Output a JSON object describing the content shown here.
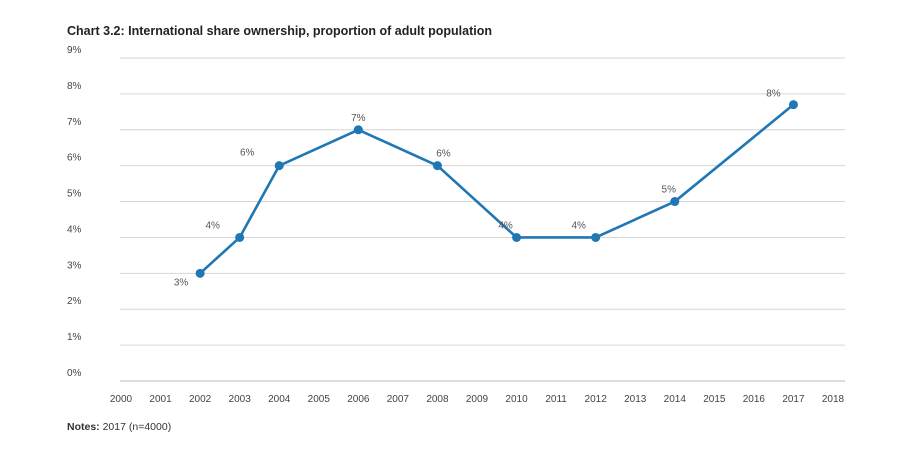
{
  "title": "Chart 3.2: International share ownership, proportion of adult population",
  "notes": {
    "label": "Notes:",
    "text": "2017 (n=4000)"
  },
  "chart_data": {
    "type": "line",
    "title": "Chart 3.2: International share ownership, proportion of adult population",
    "xlabel": "",
    "ylabel": "",
    "ylim": [
      0,
      9
    ],
    "xlim": [
      2000,
      2018
    ],
    "grid": true,
    "y_ticks": [
      "0%",
      "1%",
      "2%",
      "3%",
      "4%",
      "5%",
      "6%",
      "7%",
      "8%",
      "9%"
    ],
    "x_ticks": [
      "2000",
      "2001",
      "2002",
      "2003",
      "2004",
      "2005",
      "2006",
      "2007",
      "2008",
      "2009",
      "2010",
      "2011",
      "2012",
      "2013",
      "2014",
      "2015",
      "2016",
      "2017",
      "2018"
    ],
    "series": [
      {
        "color": "#1f77b4",
        "x": [
          2002,
          2003,
          2004,
          2006,
          2008,
          2010,
          2012,
          2014,
          2017
        ],
        "values": [
          3,
          4,
          6,
          7,
          6,
          4,
          4,
          5,
          7.7
        ],
        "labels": [
          "3%",
          "4%",
          "6%",
          "7%",
          "6%",
          "4%",
          "4%",
          "5%",
          "8%"
        ]
      }
    ]
  }
}
